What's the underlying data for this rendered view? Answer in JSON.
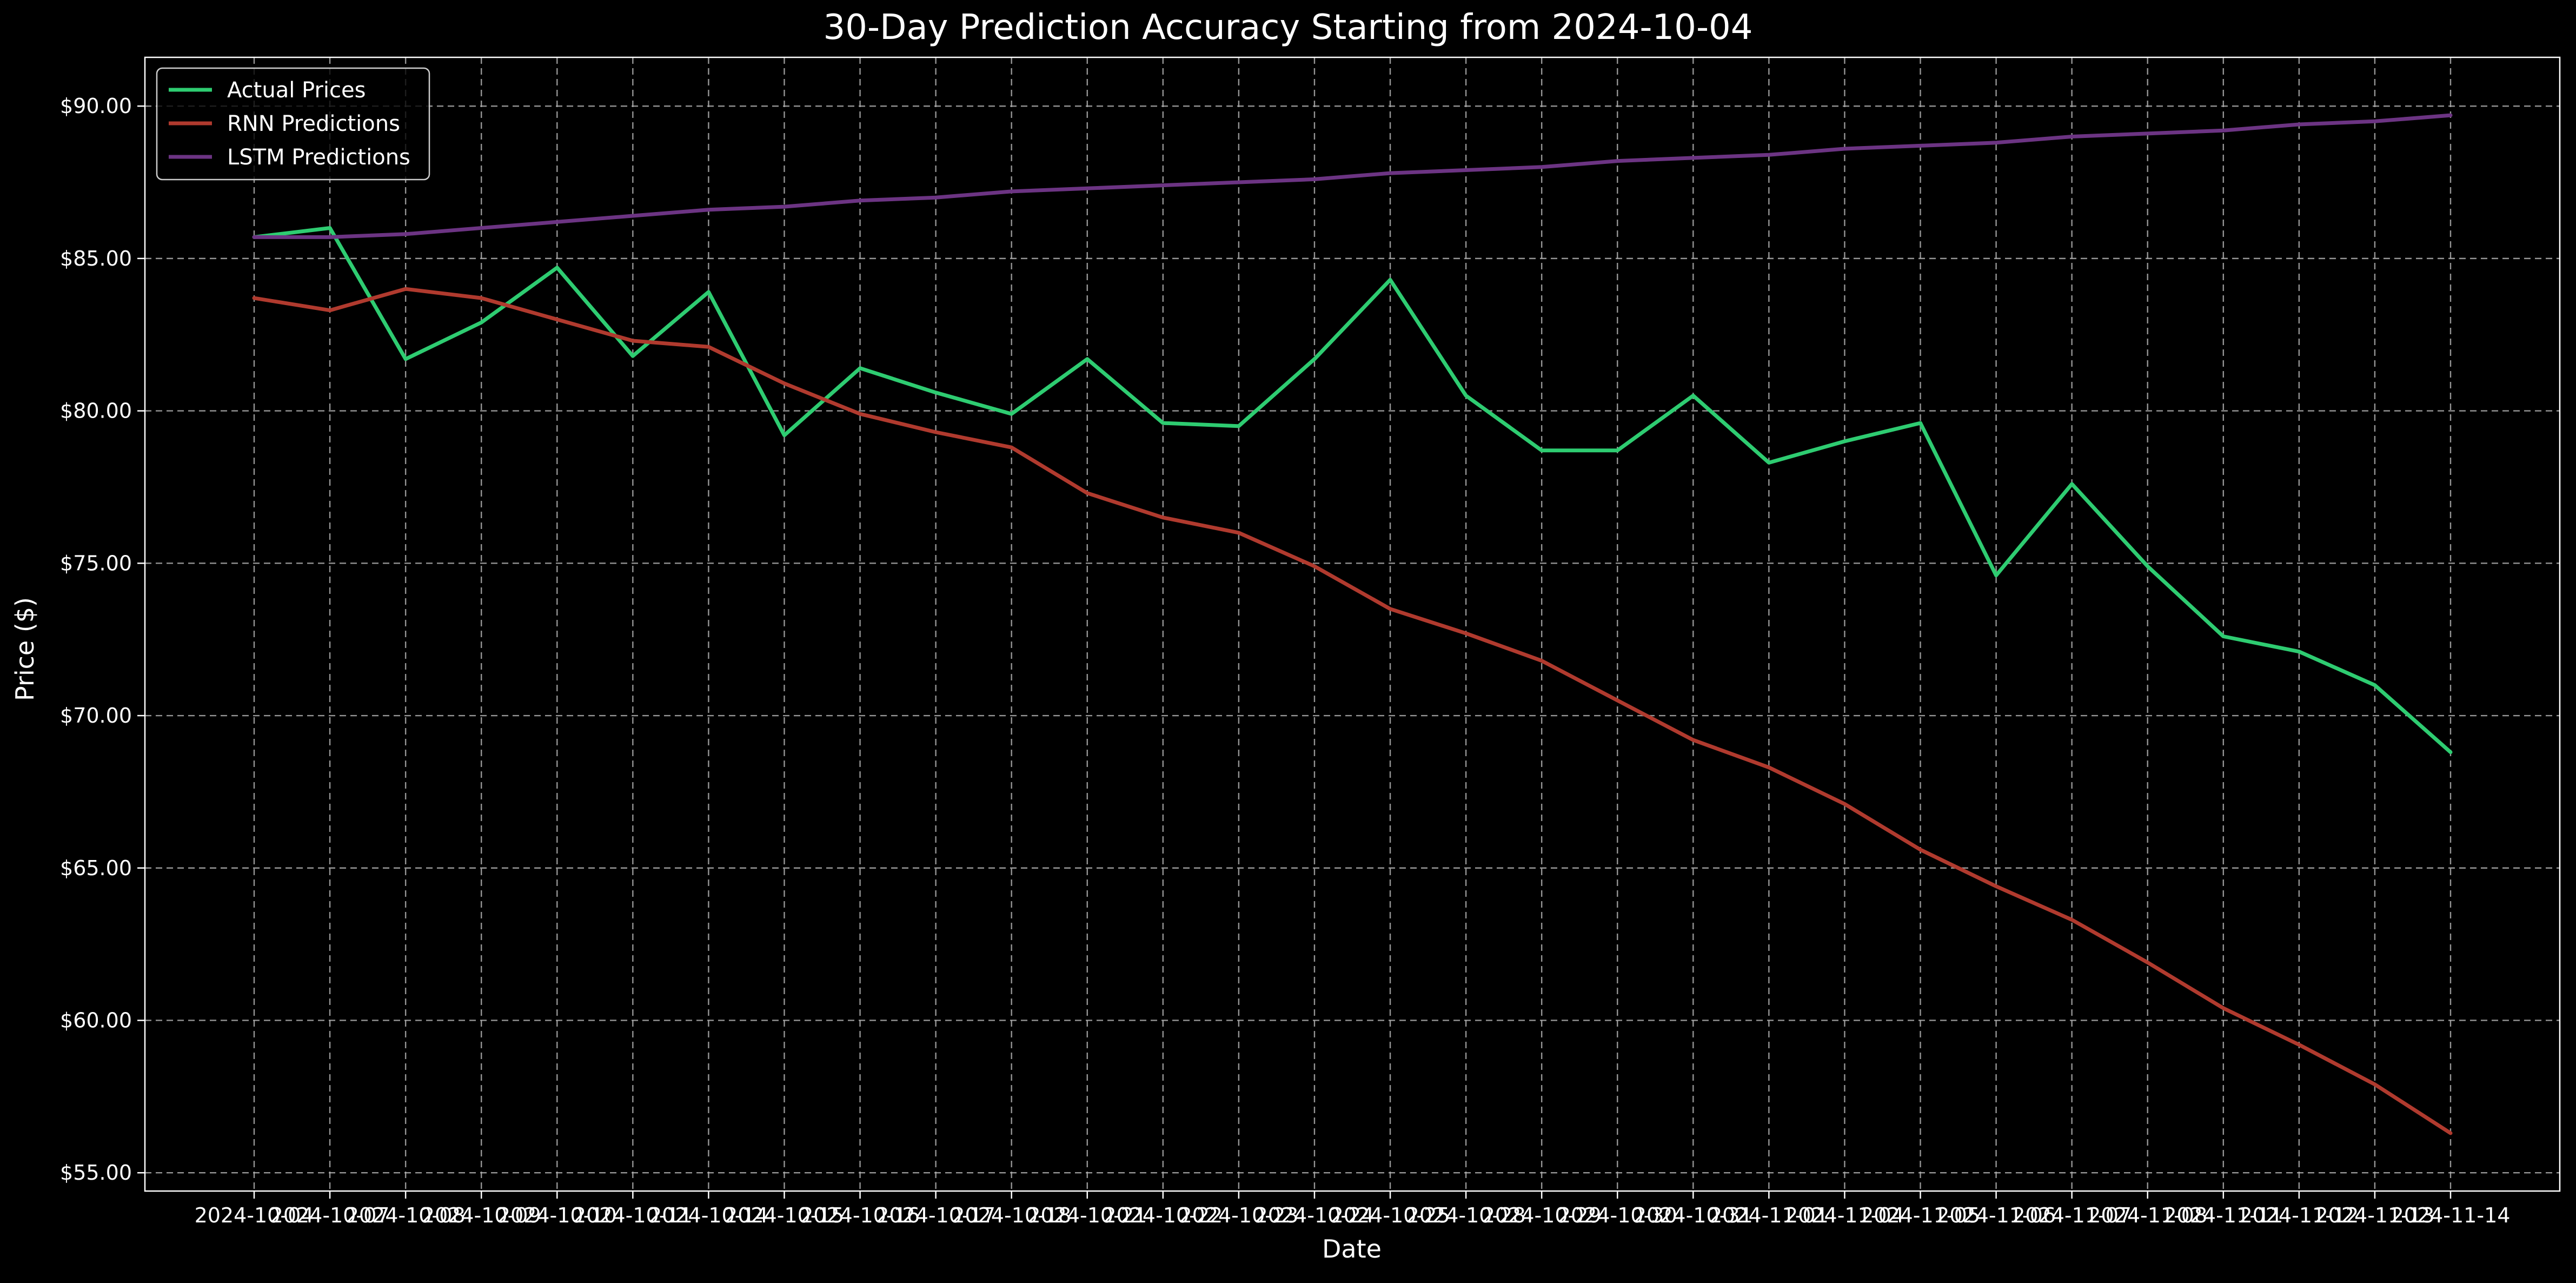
{
  "chart_data": {
    "type": "line",
    "title": "30-Day Prediction Accuracy Starting from 2024-10-04",
    "xlabel": "Date",
    "ylabel": "Price ($)",
    "ylim": [
      54.4,
      91.6
    ],
    "yticks": [
      55,
      60,
      65,
      70,
      75,
      80,
      85,
      90
    ],
    "ytick_labels": [
      "$55.00",
      "$60.00",
      "$65.00",
      "$70.00",
      "$75.00",
      "$80.00",
      "$85.00",
      "$90.00"
    ],
    "grid": true,
    "grid_style": "dashed",
    "legend_position": "upper-left",
    "background": "#000000",
    "x": [
      "2024-10-04",
      "2024-10-07",
      "2024-10-08",
      "2024-10-09",
      "2024-10-10",
      "2024-10-11",
      "2024-10-14",
      "2024-10-15",
      "2024-10-16",
      "2024-10-17",
      "2024-10-18",
      "2024-10-21",
      "2024-10-22",
      "2024-10-23",
      "2024-10-24",
      "2024-10-25",
      "2024-10-28",
      "2024-10-29",
      "2024-10-30",
      "2024-10-31",
      "2024-11-01",
      "2024-11-04",
      "2024-11-05",
      "2024-11-06",
      "2024-11-07",
      "2024-11-08",
      "2024-11-11",
      "2024-11-12",
      "2024-11-13",
      "2024-11-14"
    ],
    "series": [
      {
        "name": "Actual Prices",
        "color": "#2ecc71",
        "values": [
          85.7,
          86.0,
          81.7,
          82.9,
          84.7,
          81.8,
          83.9,
          79.2,
          81.4,
          80.6,
          79.9,
          81.7,
          79.6,
          79.5,
          81.7,
          84.3,
          80.5,
          78.7,
          78.7,
          80.5,
          78.3,
          79.0,
          79.6,
          74.6,
          77.6,
          74.9,
          72.6,
          72.1,
          71.0,
          68.8
        ]
      },
      {
        "name": "RNN Predictions",
        "color": "#b03a2e",
        "values": [
          83.7,
          83.3,
          84.0,
          83.7,
          83.0,
          82.3,
          82.1,
          80.9,
          79.9,
          79.3,
          78.8,
          77.3,
          76.5,
          76.0,
          74.9,
          73.5,
          72.7,
          71.8,
          70.5,
          69.2,
          68.3,
          67.1,
          65.6,
          64.4,
          63.3,
          61.9,
          60.4,
          59.2,
          57.9,
          56.3
        ]
      },
      {
        "name": "LSTM Predictions",
        "color": "#6c3483",
        "values": [
          85.7,
          85.7,
          85.8,
          86.0,
          86.2,
          86.4,
          86.6,
          86.7,
          86.9,
          87.0,
          87.2,
          87.3,
          87.4,
          87.5,
          87.6,
          87.8,
          87.9,
          88.0,
          88.2,
          88.3,
          88.4,
          88.6,
          88.7,
          88.8,
          89.0,
          89.1,
          89.2,
          89.4,
          89.5,
          89.7
        ]
      }
    ]
  }
}
